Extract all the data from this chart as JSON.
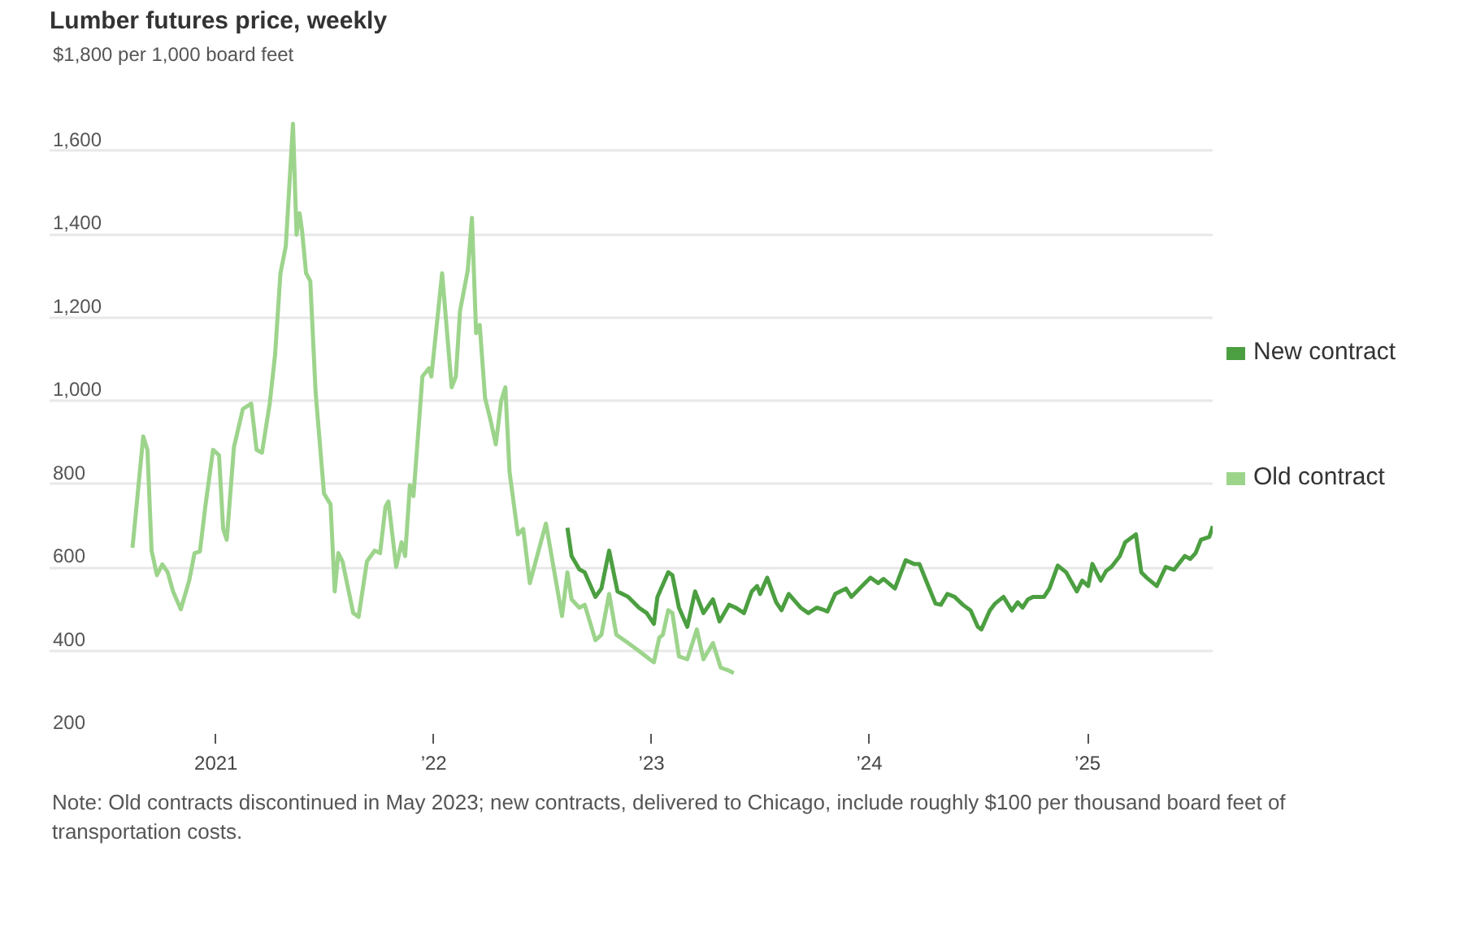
{
  "chart_data": {
    "type": "line",
    "title": "Lumber futures price, weekly",
    "xlim": [
      "2020-03-28",
      "2025-07-31"
    ],
    "xticks": [
      {
        "value": "2021-01-01",
        "label": "2021"
      },
      {
        "value": "2022-01-01",
        "label": "’22"
      },
      {
        "value": "2023-01-01",
        "label": "’23"
      },
      {
        "value": "2024-01-01",
        "label": "’24"
      },
      {
        "value": "2025-01-01",
        "label": "’25"
      }
    ],
    "ylim": [
      200,
      1800
    ],
    "yticks": [
      {
        "value": 200,
        "label": "200"
      },
      {
        "value": 400,
        "label": "400"
      },
      {
        "value": 600,
        "label": "600"
      },
      {
        "value": 800,
        "label": "800"
      },
      {
        "value": 1000,
        "label": "1,000"
      },
      {
        "value": 1200,
        "label": "1,200"
      },
      {
        "value": 1400,
        "label": "1,400"
      },
      {
        "value": 1600,
        "label": "1,600"
      },
      {
        "value": 1800,
        "label": "$1,800 per 1,000 board feet"
      }
    ],
    "grid": "y",
    "legend": "right",
    "series": [
      {
        "name": "New contract",
        "color": "#4c9f41",
        "x": [
          "2022-08-13",
          "2022-08-20",
          "2022-09-02",
          "2022-09-11",
          "2022-09-29",
          "2022-10-09",
          "2022-10-22",
          "2022-11-05",
          "2022-11-23",
          "2022-12-11",
          "2022-12-24",
          "2023-01-05",
          "2023-01-11",
          "2023-01-29",
          "2023-02-05",
          "2023-02-16",
          "2023-03-02",
          "2023-03-15",
          "2023-03-29",
          "2023-04-14",
          "2023-04-25",
          "2023-05-11",
          "2023-05-22",
          "2023-06-05",
          "2023-06-18",
          "2023-06-27",
          "2023-07-02",
          "2023-07-14",
          "2023-07-29",
          "2023-08-07",
          "2023-08-19",
          "2023-09-08",
          "2023-09-21",
          "2023-10-05",
          "2023-10-14",
          "2023-10-23",
          "2023-11-05",
          "2023-11-23",
          "2023-12-02",
          "2023-12-20",
          "2024-01-03",
          "2024-01-16",
          "2024-01-25",
          "2024-02-13",
          "2024-03-02",
          "2024-03-16",
          "2024-03-25",
          "2024-04-07",
          "2024-04-21",
          "2024-04-30",
          "2024-05-11",
          "2024-05-23",
          "2024-06-06",
          "2024-06-19",
          "2024-07-01",
          "2024-07-07",
          "2024-07-21",
          "2024-07-30",
          "2024-08-13",
          "2024-08-27",
          "2024-09-06",
          "2024-09-14",
          "2024-09-23",
          "2024-10-02",
          "2024-10-20",
          "2024-10-29",
          "2024-11-12",
          "2024-11-26",
          "2024-12-05",
          "2024-12-14",
          "2024-12-23",
          "2025-01-02",
          "2025-01-09",
          "2025-01-23",
          "2025-02-01",
          "2025-02-10",
          "2025-02-24",
          "2025-03-05",
          "2025-03-23",
          "2025-04-01",
          "2025-04-10",
          "2025-04-27",
          "2025-05-12",
          "2025-05-26",
          "2025-06-13",
          "2025-06-22",
          "2025-07-01",
          "2025-07-10",
          "2025-07-24",
          "2025-07-30"
        ],
        "values": [
          695,
          627,
          595,
          588,
          529,
          549,
          640,
          542,
          529,
          503,
          490,
          464,
          529,
          588,
          581,
          503,
          457,
          542,
          490,
          523,
          470,
          510,
          503,
          490,
          542,
          555,
          536,
          575,
          516,
          497,
          536,
          503,
          490,
          503,
          499,
          494,
          536,
          549,
          529,
          555,
          575,
          562,
          572,
          549,
          617,
          608,
          608,
          562,
          513,
          510,
          536,
          529,
          510,
          496,
          457,
          451,
          496,
          513,
          529,
          496,
          516,
          503,
          523,
          529,
          529,
          549,
          604,
          588,
          565,
          542,
          568,
          555,
          608,
          568,
          591,
          601,
          627,
          660,
          679,
          588,
          575,
          555,
          601,
          594,
          627,
          620,
          634,
          666,
          673,
          699
        ]
      },
      {
        "name": "Old contract",
        "color": "#9dd48c",
        "x": [
          "2020-08-14",
          "2020-09-01",
          "2020-09-08",
          "2020-09-15",
          "2020-09-24",
          "2020-10-03",
          "2020-10-12",
          "2020-10-21",
          "2020-11-03",
          "2020-11-17",
          "2020-11-26",
          "2020-12-05",
          "2020-12-14",
          "2020-12-27",
          "2021-01-06",
          "2021-01-13",
          "2021-01-19",
          "2021-01-31",
          "2021-02-15",
          "2021-03-01",
          "2021-03-10",
          "2021-03-19",
          "2021-04-01",
          "2021-04-10",
          "2021-04-19",
          "2021-04-28",
          "2021-05-10",
          "2021-05-16",
          "2021-05-21",
          "2021-05-25",
          "2021-06-01",
          "2021-06-08",
          "2021-06-17",
          "2021-07-01",
          "2021-07-12",
          "2021-07-19",
          "2021-07-25",
          "2021-08-01",
          "2021-08-19",
          "2021-08-28",
          "2021-09-11",
          "2021-09-24",
          "2021-10-03",
          "2021-10-12",
          "2021-10-17",
          "2021-10-30",
          "2021-11-08",
          "2021-11-14",
          "2021-11-22",
          "2021-11-28",
          "2021-12-13",
          "2021-12-24",
          "2021-12-28",
          "2022-01-15",
          "2022-01-31",
          "2022-02-07",
          "2022-02-14",
          "2022-02-27",
          "2022-03-06",
          "2022-03-13",
          "2022-03-19",
          "2022-03-28",
          "2022-04-06",
          "2022-04-15",
          "2022-04-24",
          "2022-05-01",
          "2022-05-08",
          "2022-05-22",
          "2022-05-31",
          "2022-06-11",
          "2022-07-08",
          "2022-08-04",
          "2022-08-13",
          "2022-08-20",
          "2022-09-02",
          "2022-09-11",
          "2022-09-29",
          "2022-10-09",
          "2022-10-22",
          "2022-11-03",
          "2022-11-23",
          "2022-12-11",
          "2022-12-29",
          "2023-01-05",
          "2023-01-14",
          "2023-01-20",
          "2023-01-29",
          "2023-02-05",
          "2023-02-16",
          "2023-03-02",
          "2023-03-18",
          "2023-03-29",
          "2023-04-14",
          "2023-04-27",
          "2023-05-09",
          "2023-05-19"
        ],
        "values": [
          647,
          914,
          882,
          640,
          581,
          607,
          588,
          542,
          499,
          568,
          634,
          638,
          745,
          882,
          869,
          692,
          666,
          888,
          980,
          993,
          882,
          875,
          993,
          1110,
          1306,
          1371,
          1665,
          1398,
          1450,
          1411,
          1306,
          1287,
          1019,
          777,
          751,
          542,
          634,
          614,
          490,
          481,
          614,
          640,
          634,
          745,
          758,
          601,
          660,
          627,
          797,
          771,
          1058,
          1078,
          1058,
          1306,
          1032,
          1058,
          1215,
          1313,
          1439,
          1162,
          1182,
          1006,
          954,
          895,
          1000,
          1032,
          829,
          679,
          692,
          562,
          705,
          483,
          588,
          523,
          503,
          510,
          425,
          438,
          536,
          438,
          418,
          399,
          379,
          372,
          431,
          438,
          497,
          490,
          386,
          379,
          451,
          379,
          418,
          359,
          353,
          346
        ]
      }
    ],
    "annotations": [
      "Note: Old contracts discontinued in May 2023; new contracts, delivered to Chicago, include roughly $100 per thousand board feet of transportation costs."
    ]
  }
}
